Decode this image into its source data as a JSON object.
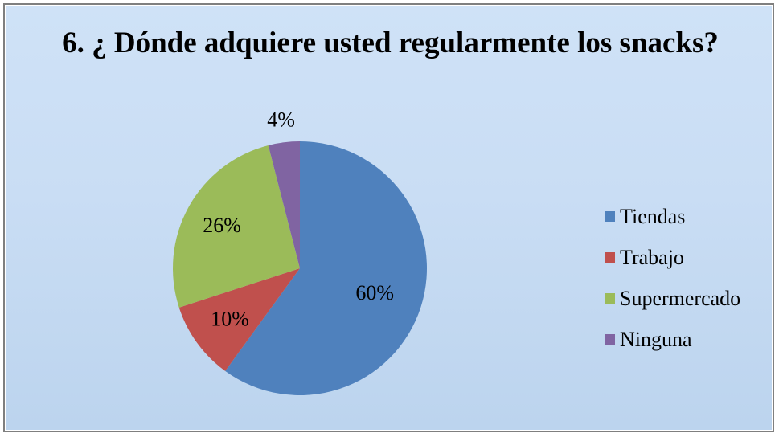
{
  "chart_data": {
    "type": "pie",
    "title": "6. ¿ Dónde adquiere usted regularmente los snacks?",
    "categories": [
      "Tiendas",
      "Trabajo",
      "Supermercado",
      "Ninguna"
    ],
    "values": [
      60,
      10,
      26,
      4
    ],
    "labels": [
      "60%",
      "10%",
      "26%",
      "4%"
    ],
    "colors": [
      "#4f81bd",
      "#c0504d",
      "#9bbb59",
      "#8064a2"
    ],
    "legend_position": "right",
    "start_angle": "12 o'clock",
    "direction": "clockwise"
  }
}
